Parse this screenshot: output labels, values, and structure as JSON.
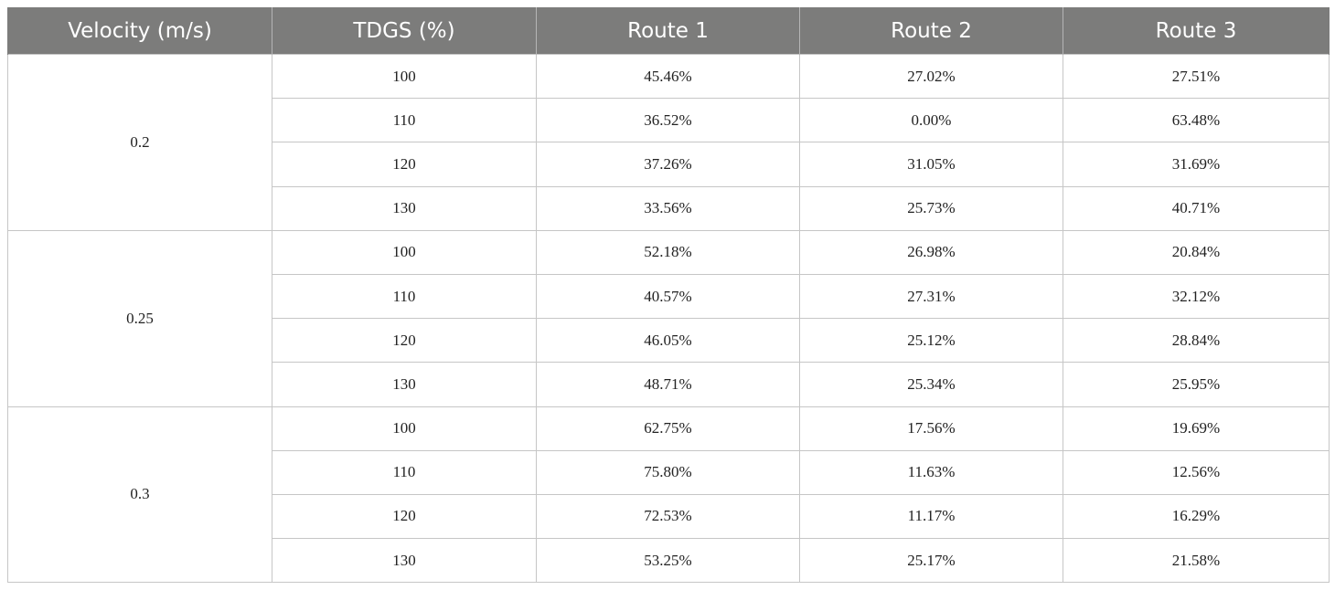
{
  "table": {
    "headers": [
      "Velocity (m/s)",
      "TDGS (%)",
      "Route 1",
      "Route 2",
      "Route 3"
    ],
    "groups": [
      {
        "velocity": "0.2",
        "rows": [
          {
            "tdgs": "100",
            "route1": "45.46%",
            "route2": "27.02%",
            "route3": "27.51%"
          },
          {
            "tdgs": "110",
            "route1": "36.52%",
            "route2": "0.00%",
            "route3": "63.48%"
          },
          {
            "tdgs": "120",
            "route1": "37.26%",
            "route2": "31.05%",
            "route3": "31.69%"
          },
          {
            "tdgs": "130",
            "route1": "33.56%",
            "route2": "25.73%",
            "route3": "40.71%"
          }
        ]
      },
      {
        "velocity": "0.25",
        "rows": [
          {
            "tdgs": "100",
            "route1": "52.18%",
            "route2": "26.98%",
            "route3": "20.84%"
          },
          {
            "tdgs": "110",
            "route1": "40.57%",
            "route2": "27.31%",
            "route3": "32.12%"
          },
          {
            "tdgs": "120",
            "route1": "46.05%",
            "route2": "25.12%",
            "route3": "28.84%"
          },
          {
            "tdgs": "130",
            "route1": "48.71%",
            "route2": "25.34%",
            "route3": "25.95%"
          }
        ]
      },
      {
        "velocity": "0.3",
        "rows": [
          {
            "tdgs": "100",
            "route1": "62.75%",
            "route2": "17.56%",
            "route3": "19.69%"
          },
          {
            "tdgs": "110",
            "route1": "75.80%",
            "route2": "11.63%",
            "route3": "12.56%"
          },
          {
            "tdgs": "120",
            "route1": "72.53%",
            "route2": "11.17%",
            "route3": "16.29%"
          },
          {
            "tdgs": "130",
            "route1": "53.25%",
            "route2": "25.17%",
            "route3": "21.58%"
          }
        ]
      }
    ]
  }
}
